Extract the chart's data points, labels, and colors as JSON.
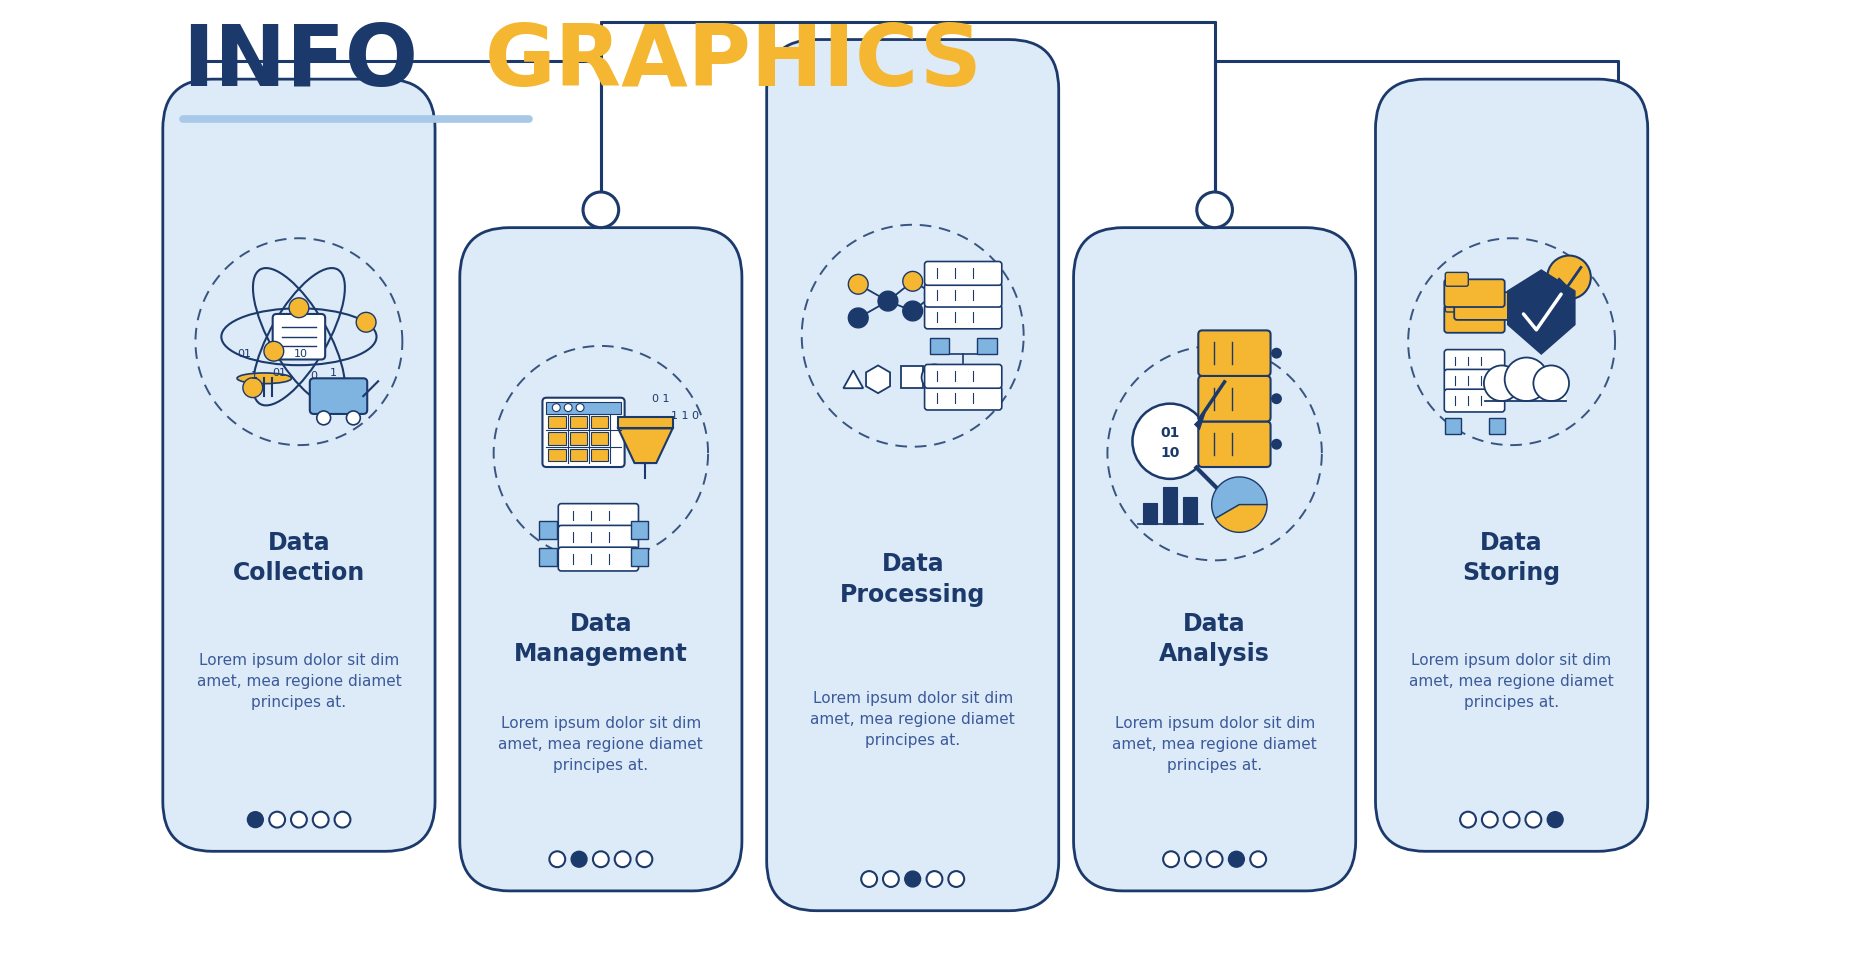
{
  "title_info": "INFO",
  "title_graphics": "GRAPHICS",
  "title_color_info": "#1b3a6b",
  "title_color_graphics": "#f5b731",
  "underline_color": "#a8c8e8",
  "background_color": "#ffffff",
  "card_bg_color": "#ddeaf8",
  "card_border_color": "#1b3a6b",
  "text_dark": "#1b3a6b",
  "text_body": "#1b3a6b",
  "lorem_text": "Lorem ipsum dolor sit dim\namet, mea regione diamet\nprincipes at.",
  "icon_blue": "#1b3a6b",
  "icon_yellow": "#f5b731",
  "icon_light_blue": "#7fb3e0",
  "icon_bg_blue": "#b8d4f0",
  "cards": [
    {
      "title": "Data\nCollection",
      "active_dot": 0
    },
    {
      "title": "Data\nManagement",
      "active_dot": 1
    },
    {
      "title": "Data\nProcessing",
      "active_dot": 2
    },
    {
      "title": "Data\nAnalysis",
      "active_dot": 3
    },
    {
      "title": "Data\nStoring",
      "active_dot": 4
    }
  ]
}
